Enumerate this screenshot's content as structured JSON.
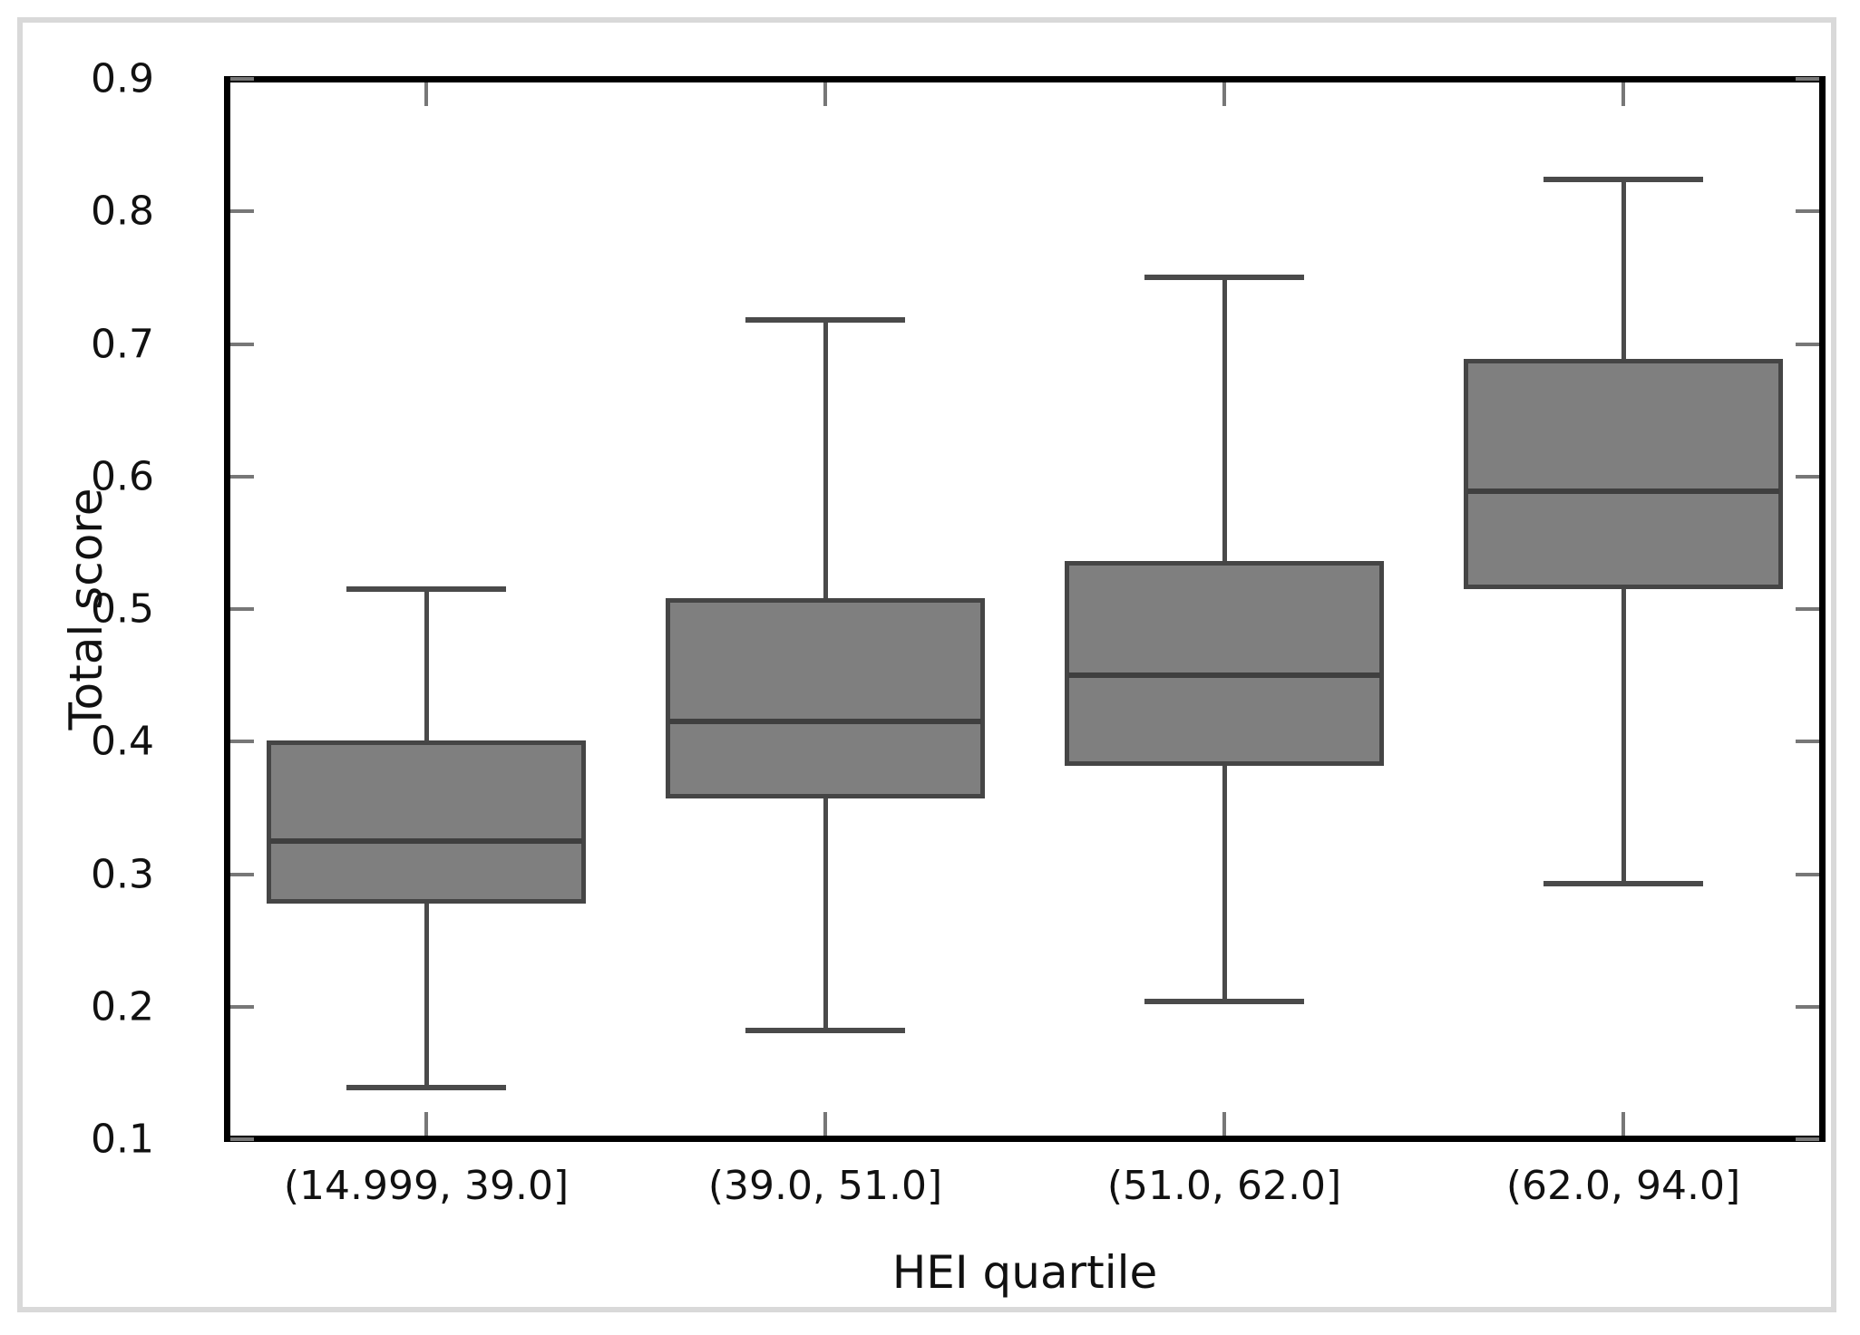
{
  "figure": {
    "background": "#ffffff",
    "outer_border_color": "#d9d9d9"
  },
  "chart_data": {
    "type": "box",
    "title": "",
    "xlabel": "HEI quartile",
    "ylabel": "Total score",
    "categories": [
      "(14.999, 39.0]",
      "(39.0, 51.0]",
      "(51.0, 62.0]",
      "(62.0, 94.0]"
    ],
    "ylim": [
      0.1,
      0.9
    ],
    "ytick_labels": [
      "0.1",
      "0.2",
      "0.3",
      "0.4",
      "0.5",
      "0.6",
      "0.7",
      "0.8",
      "0.9"
    ],
    "grid": false,
    "legend": "none",
    "tick_direction": "in",
    "series": [
      {
        "category": "(14.999, 39.0]",
        "whisker_low": 0.139,
        "q1": 0.278,
        "median": 0.325,
        "q3": 0.401,
        "whisker_high": 0.515
      },
      {
        "category": "(39.0, 51.0]",
        "whisker_low": 0.182,
        "q1": 0.357,
        "median": 0.415,
        "q3": 0.508,
        "whisker_high": 0.718
      },
      {
        "category": "(51.0, 62.0]",
        "whisker_low": 0.204,
        "q1": 0.382,
        "median": 0.45,
        "q3": 0.536,
        "whisker_high": 0.75
      },
      {
        "category": "(62.0, 94.0]",
        "whisker_low": 0.293,
        "q1": 0.515,
        "median": 0.589,
        "q3": 0.689,
        "whisker_high": 0.824
      }
    ],
    "colors": {
      "box_fill": "#7f7f7f",
      "box_edge": "#454545",
      "median_line": "#3f3f3f",
      "whisker": "#4a4a4a",
      "frame": "#000000",
      "tick_mark": "#777777",
      "text": "#111111"
    }
  }
}
